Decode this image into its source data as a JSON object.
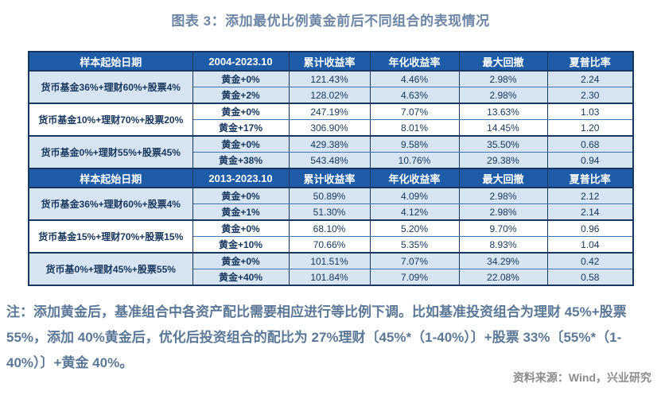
{
  "title": "图表 3：添加最优比例黄金前后不同组合的表现情况",
  "colors": {
    "header_bg": "#1E5CA8",
    "header_text": "#ffffff",
    "shaded_row_bg": "#D7E4F2",
    "table_border": "#17375E",
    "thin_divider": "#3E74B4",
    "cell_text": "#17375E",
    "title_text": "#6E86A5",
    "note_text": "#5B7897",
    "source_text": "#8C8C8C"
  },
  "table": {
    "headers": {
      "portfolio": "样本起始日期",
      "cum": "累计收益率",
      "ann": "年化收益率",
      "dd": "最大回撤",
      "sharpe": "夏普比率"
    },
    "sections": [
      {
        "period": "2004-2023.10",
        "groups": [
          {
            "portfolio": "货币基金36%+理财60%+股票4%",
            "shaded": true,
            "rows": [
              {
                "gold": "黄金+0%",
                "cum": "121.43%",
                "ann": "4.46%",
                "dd": "2.98%",
                "sharpe": "2.24"
              },
              {
                "gold": "黄金+2%",
                "cum": "128.02%",
                "ann": "4.63%",
                "dd": "2.98%",
                "sharpe": "2.30"
              }
            ]
          },
          {
            "portfolio": "货币基金10%+理财70%+股票20%",
            "shaded": false,
            "rows": [
              {
                "gold": "黄金+0%",
                "cum": "247.19%",
                "ann": "7.07%",
                "dd": "13.63%",
                "sharpe": "1.03"
              },
              {
                "gold": "黄金+17%",
                "cum": "306.90%",
                "ann": "8.01%",
                "dd": "14.45%",
                "sharpe": "1.20"
              }
            ]
          },
          {
            "portfolio": "货币基金0%+理财55%+股票45%",
            "shaded": true,
            "rows": [
              {
                "gold": "黄金+0%",
                "cum": "429.38%",
                "ann": "9.58%",
                "dd": "35.50%",
                "sharpe": "0.68"
              },
              {
                "gold": "黄金+38%",
                "cum": "543.48%",
                "ann": "10.76%",
                "dd": "29.38%",
                "sharpe": "0.94"
              }
            ]
          }
        ]
      },
      {
        "period": "2013-2023.10",
        "groups": [
          {
            "portfolio": "货币基金36%+理财60%+股票4%",
            "shaded": true,
            "rows": [
              {
                "gold": "黄金+0%",
                "cum": "50.89%",
                "ann": "4.09%",
                "dd": "2.98%",
                "sharpe": "2.12"
              },
              {
                "gold": "黄金+1%",
                "cum": "51.30%",
                "ann": "4.12%",
                "dd": "2.98%",
                "sharpe": "2.14"
              }
            ]
          },
          {
            "portfolio": "货币基金15%+理财70%+股票15%",
            "shaded": false,
            "rows": [
              {
                "gold": "黄金+0%",
                "cum": "68.10%",
                "ann": "5.20%",
                "dd": "9.70%",
                "sharpe": "0.96"
              },
              {
                "gold": "黄金+10%",
                "cum": "70.66%",
                "ann": "5.35%",
                "dd": "8.93%",
                "sharpe": "1.04"
              }
            ]
          },
          {
            "portfolio": "货币基0%+理财45%+股票55%",
            "shaded": true,
            "rows": [
              {
                "gold": "黄金+0%",
                "cum": "101.51%",
                "ann": "7.07%",
                "dd": "34.29%",
                "sharpe": "0.42"
              },
              {
                "gold": "黄金+40%",
                "cum": "101.84%",
                "ann": "7.09%",
                "dd": "22.08%",
                "sharpe": "0.58"
              }
            ]
          }
        ]
      }
    ]
  },
  "note": "注：添加黄金后，基准组合中各资产配比需要相应进行等比例下调。比如基准投资组合为理财 45%+股票 55%，添加 40%黄金后，优化后投资组合的配比为 27%理财〔45%*（1-40%）〕+股票 33%〔55%*（1-40%）〕+黄金 40%。",
  "source": "资料来源：Wind，兴业研究"
}
